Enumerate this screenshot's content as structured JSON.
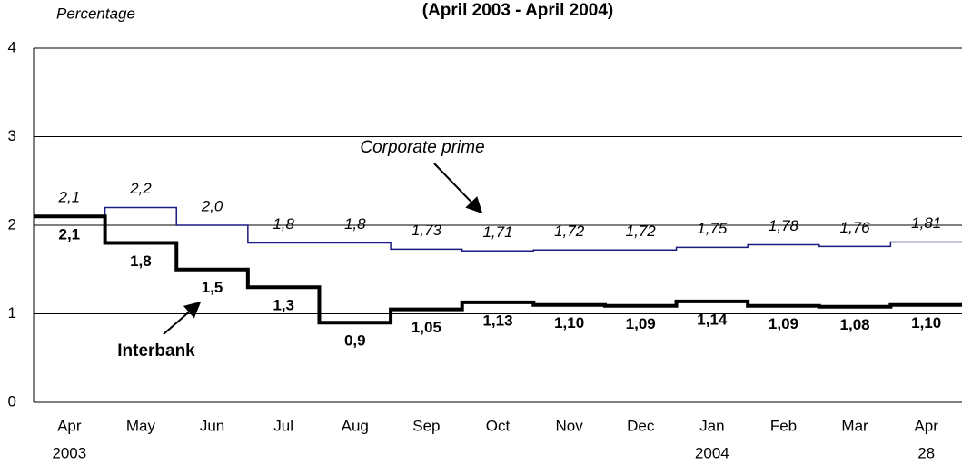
{
  "chart_data": {
    "type": "step-line",
    "title": "(April 2003 - April 2004)",
    "y_axis_label": "Percentage",
    "categories": [
      "Apr",
      "May",
      "Jun",
      "Jul",
      "Aug",
      "Sep",
      "Oct",
      "Nov",
      "Dec",
      "Jan",
      "Feb",
      "Mar",
      "Apr"
    ],
    "category_sublabels": [
      "2003",
      null,
      null,
      null,
      null,
      null,
      null,
      null,
      null,
      "2004",
      null,
      null,
      "28"
    ],
    "series": [
      {
        "name": "Corporate prime",
        "color": "#1a1a80",
        "values": [
          2.1,
          2.2,
          2.0,
          1.8,
          1.8,
          1.73,
          1.71,
          1.72,
          1.72,
          1.75,
          1.78,
          1.76,
          1.81
        ],
        "value_labels": [
          "2,1",
          "2,2",
          "2,0",
          "1,8",
          "1,8",
          "1,73",
          "1,71",
          "1,72",
          "1,72",
          "1,75",
          "1,78",
          "1,76",
          "1,81"
        ]
      },
      {
        "name": "Interbank",
        "color": "#000000",
        "values": [
          2.1,
          1.8,
          1.5,
          1.3,
          0.9,
          1.05,
          1.13,
          1.1,
          1.09,
          1.14,
          1.09,
          1.08,
          1.1
        ],
        "value_labels": [
          "2,1",
          "1,8",
          "1,5",
          "1,3",
          "0,9",
          "1,05",
          "1,13",
          "1,10",
          "1,09",
          "1,14",
          "1,09",
          "1,08",
          "1,10"
        ]
      }
    ],
    "ylim": [
      0,
      4
    ],
    "yticks": [
      0,
      1,
      2,
      3,
      4
    ],
    "grid": true
  }
}
